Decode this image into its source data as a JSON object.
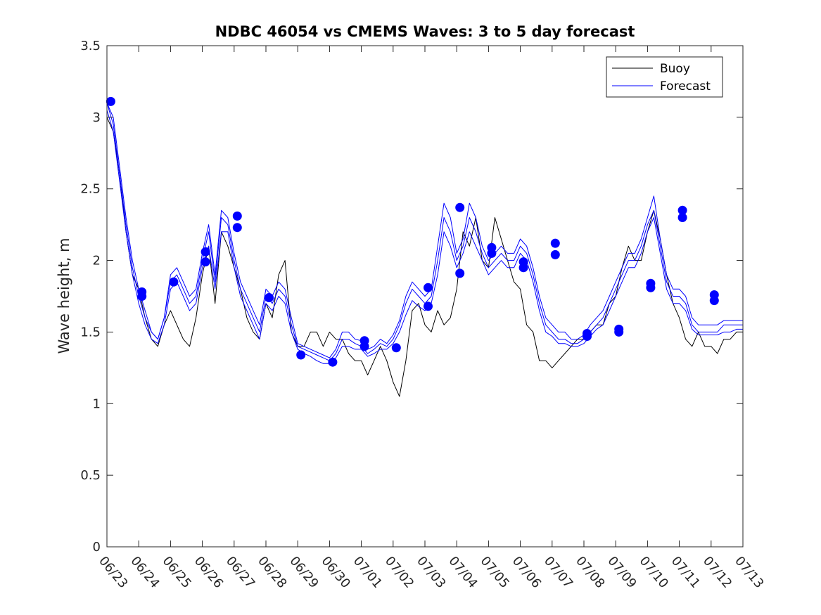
{
  "chart_data": {
    "type": "line",
    "title": "NDBC 46054 vs CMEMS Waves: 3 to 5 day forecast",
    "xlabel": "",
    "ylabel": "Wave height, m",
    "x_tick_labels": [
      "06/23",
      "06/24",
      "06/25",
      "06/26",
      "06/27",
      "06/28",
      "06/29",
      "06/30",
      "07/01",
      "07/02",
      "07/03",
      "07/04",
      "07/05",
      "07/06",
      "07/07",
      "07/08",
      "07/09",
      "07/10",
      "07/11",
      "07/12",
      "07/13"
    ],
    "xlim_days": [
      0,
      20
    ],
    "ylim": [
      0,
      3.5
    ],
    "y_ticks": [
      0,
      0.5,
      1,
      1.5,
      2,
      2.5,
      3,
      3.5
    ],
    "y_tick_labels": [
      "0",
      "0.5",
      "1",
      "1.5",
      "2",
      "2.5",
      "3",
      "3.5"
    ],
    "grid": false,
    "legend_position": "top-right",
    "legend": [
      {
        "label": "Buoy",
        "color": "#000000"
      },
      {
        "label": "Forecast",
        "color": "#0000ff"
      }
    ],
    "series": [
      {
        "name": "Buoy",
        "color": "#000000",
        "x": [
          0,
          0.2,
          0.4,
          0.6,
          0.8,
          1.0,
          1.2,
          1.4,
          1.6,
          1.8,
          2.0,
          2.2,
          2.4,
          2.6,
          2.8,
          3.0,
          3.2,
          3.4,
          3.6,
          3.8,
          4.0,
          4.2,
          4.4,
          4.6,
          4.8,
          5.0,
          5.2,
          5.4,
          5.6,
          5.8,
          6.0,
          6.2,
          6.4,
          6.6,
          6.8,
          7.0,
          7.2,
          7.4,
          7.6,
          7.8,
          8.0,
          8.2,
          8.4,
          8.6,
          8.8,
          9.0,
          9.2,
          9.4,
          9.6,
          9.8,
          10.0,
          10.2,
          10.4,
          10.6,
          10.8,
          11.0,
          11.2,
          11.4,
          11.6,
          11.8,
          12.0,
          12.2,
          12.4,
          12.6,
          12.8,
          13.0,
          13.2,
          13.4,
          13.6,
          13.8,
          14.0,
          14.2,
          14.4,
          14.6,
          14.8,
          15.0,
          15.2,
          15.4,
          15.6,
          15.8,
          16.0,
          16.2,
          16.4,
          16.6,
          16.8,
          17.0,
          17.2,
          17.4,
          17.6,
          17.8,
          18.0,
          18.2,
          18.4,
          18.6,
          18.8,
          19.0,
          19.2,
          19.4,
          19.6,
          19.8,
          20.0
        ],
        "values": [
          3.0,
          2.9,
          2.6,
          2.2,
          1.9,
          1.8,
          1.6,
          1.45,
          1.4,
          1.55,
          1.65,
          1.55,
          1.45,
          1.4,
          1.6,
          1.9,
          2.1,
          1.7,
          2.2,
          2.1,
          1.95,
          1.8,
          1.6,
          1.5,
          1.45,
          1.7,
          1.6,
          1.9,
          2.0,
          1.5,
          1.4,
          1.4,
          1.5,
          1.5,
          1.4,
          1.5,
          1.45,
          1.45,
          1.35,
          1.3,
          1.3,
          1.2,
          1.3,
          1.4,
          1.3,
          1.15,
          1.05,
          1.3,
          1.65,
          1.7,
          1.55,
          1.5,
          1.65,
          1.55,
          1.6,
          1.8,
          2.2,
          2.1,
          2.3,
          2.0,
          1.95,
          2.3,
          2.15,
          2.0,
          1.85,
          1.8,
          1.55,
          1.5,
          1.3,
          1.3,
          1.25,
          1.3,
          1.35,
          1.4,
          1.45,
          1.45,
          1.5,
          1.55,
          1.55,
          1.7,
          1.75,
          1.95,
          2.1,
          2.0,
          2.0,
          2.2,
          2.35,
          2.15,
          1.9,
          1.7,
          1.6,
          1.45,
          1.4,
          1.5,
          1.4,
          1.4,
          1.35,
          1.45,
          1.45,
          1.5,
          1.5
        ]
      },
      {
        "name": "Forecast",
        "color": "#0000ff",
        "x": [
          0,
          0.2,
          0.4,
          0.6,
          0.8,
          1.0,
          1.2,
          1.4,
          1.6,
          1.8,
          2.0,
          2.2,
          2.4,
          2.6,
          2.8,
          3.0,
          3.2,
          3.4,
          3.6,
          3.8,
          4.0,
          4.2,
          4.4,
          4.6,
          4.8,
          5.0,
          5.2,
          5.4,
          5.6,
          5.8,
          6.0,
          6.2,
          6.4,
          6.6,
          6.8,
          7.0,
          7.2,
          7.4,
          7.6,
          7.8,
          8.0,
          8.2,
          8.4,
          8.6,
          8.8,
          9.0,
          9.2,
          9.4,
          9.6,
          9.8,
          10.0,
          10.2,
          10.4,
          10.6,
          10.8,
          11.0,
          11.2,
          11.4,
          11.6,
          11.8,
          12.0,
          12.2,
          12.4,
          12.6,
          12.8,
          13.0,
          13.2,
          13.4,
          13.6,
          13.8,
          14.0,
          14.2,
          14.4,
          14.6,
          14.8,
          15.0,
          15.2,
          15.4,
          15.6,
          15.8,
          16.0,
          16.2,
          16.4,
          16.6,
          16.8,
          17.0,
          17.2,
          17.4,
          17.6,
          17.8,
          18.0,
          18.2,
          18.4,
          18.6,
          18.8,
          19.0,
          19.2,
          19.4,
          19.6,
          19.8,
          20.0
        ],
        "values": [
          3.1,
          2.95,
          2.6,
          2.25,
          1.95,
          1.75,
          1.6,
          1.5,
          1.45,
          1.6,
          1.85,
          1.9,
          1.8,
          1.7,
          1.75,
          2.0,
          2.2,
          1.85,
          2.3,
          2.25,
          2.0,
          1.8,
          1.7,
          1.6,
          1.5,
          1.75,
          1.7,
          1.8,
          1.75,
          1.55,
          1.4,
          1.38,
          1.36,
          1.34,
          1.32,
          1.3,
          1.35,
          1.45,
          1.45,
          1.42,
          1.4,
          1.35,
          1.38,
          1.42,
          1.4,
          1.45,
          1.55,
          1.7,
          1.8,
          1.75,
          1.7,
          1.75,
          2.0,
          2.3,
          2.2,
          2.0,
          2.1,
          2.3,
          2.2,
          2.05,
          1.95,
          2.0,
          2.05,
          2.0,
          2.0,
          2.1,
          2.05,
          1.9,
          1.7,
          1.55,
          1.5,
          1.45,
          1.45,
          1.42,
          1.42,
          1.45,
          1.5,
          1.55,
          1.6,
          1.7,
          1.8,
          1.9,
          2.0,
          2.0,
          2.1,
          2.25,
          2.35,
          2.1,
          1.85,
          1.75,
          1.75,
          1.7,
          1.55,
          1.5,
          1.5,
          1.5,
          1.5,
          1.55,
          1.55,
          1.55,
          1.55
        ]
      },
      {
        "name": "",
        "color": "#0000ff",
        "x": [
          0,
          0.2,
          0.4,
          0.6,
          0.8,
          1.0,
          1.2,
          1.4,
          1.6,
          1.8,
          2.0,
          2.2,
          2.4,
          2.6,
          2.8,
          3.0,
          3.2,
          3.4,
          3.6,
          3.8,
          4.0,
          4.2,
          4.4,
          4.6,
          4.8,
          5.0,
          5.2,
          5.4,
          5.6,
          5.8,
          6.0,
          6.2,
          6.4,
          6.6,
          6.8,
          7.0,
          7.2,
          7.4,
          7.6,
          7.8,
          8.0,
          8.2,
          8.4,
          8.6,
          8.8,
          9.0,
          9.2,
          9.4,
          9.6,
          9.8,
          10.0,
          10.2,
          10.4,
          10.6,
          10.8,
          11.0,
          11.2,
          11.4,
          11.6,
          11.8,
          12.0,
          12.2,
          12.4,
          12.6,
          12.8,
          13.0,
          13.2,
          13.4,
          13.6,
          13.8,
          14.0,
          14.2,
          14.4,
          14.6,
          14.8,
          15.0,
          15.2,
          15.4,
          15.6,
          15.8,
          16.0,
          16.2,
          16.4,
          16.6,
          16.8,
          17.0,
          17.2,
          17.4,
          17.6,
          17.8,
          18.0,
          18.2,
          18.4,
          18.6,
          18.8,
          19.0,
          19.2,
          19.4,
          19.6,
          19.8,
          20.0
        ],
        "values": [
          3.05,
          2.9,
          2.55,
          2.2,
          1.9,
          1.7,
          1.55,
          1.45,
          1.42,
          1.55,
          1.8,
          1.85,
          1.75,
          1.65,
          1.7,
          1.95,
          2.1,
          1.8,
          2.2,
          2.2,
          1.95,
          1.75,
          1.65,
          1.55,
          1.45,
          1.7,
          1.65,
          1.75,
          1.7,
          1.5,
          1.38,
          1.35,
          1.33,
          1.3,
          1.28,
          1.28,
          1.32,
          1.4,
          1.4,
          1.38,
          1.38,
          1.33,
          1.35,
          1.38,
          1.38,
          1.42,
          1.5,
          1.62,
          1.72,
          1.68,
          1.65,
          1.7,
          1.9,
          2.2,
          2.1,
          1.95,
          2.05,
          2.2,
          2.1,
          2.0,
          1.9,
          1.95,
          2.0,
          1.95,
          1.95,
          2.05,
          2.0,
          1.85,
          1.65,
          1.5,
          1.47,
          1.42,
          1.42,
          1.4,
          1.4,
          1.42,
          1.47,
          1.52,
          1.55,
          1.65,
          1.75,
          1.85,
          1.95,
          1.95,
          2.05,
          2.2,
          2.3,
          2.05,
          1.8,
          1.7,
          1.7,
          1.65,
          1.52,
          1.48,
          1.48,
          1.48,
          1.48,
          1.5,
          1.5,
          1.52,
          1.52
        ]
      },
      {
        "name": "",
        "color": "#0000ff",
        "x": [
          0,
          0.2,
          0.4,
          0.6,
          0.8,
          1.0,
          1.2,
          1.4,
          1.6,
          1.8,
          2.0,
          2.2,
          2.4,
          2.6,
          2.8,
          3.0,
          3.2,
          3.4,
          3.6,
          3.8,
          4.0,
          4.2,
          4.4,
          4.6,
          4.8,
          5.0,
          5.2,
          5.4,
          5.6,
          5.8,
          6.0,
          6.2,
          6.4,
          6.6,
          6.8,
          7.0,
          7.2,
          7.4,
          7.6,
          7.8,
          8.0,
          8.2,
          8.4,
          8.6,
          8.8,
          9.0,
          9.2,
          9.4,
          9.6,
          9.8,
          10.0,
          10.2,
          10.4,
          10.6,
          10.8,
          11.0,
          11.2,
          11.4,
          11.6,
          11.8,
          12.0,
          12.2,
          12.4,
          12.6,
          12.8,
          13.0,
          13.2,
          13.4,
          13.6,
          13.8,
          14.0,
          14.2,
          14.4,
          14.6,
          14.8,
          15.0,
          15.2,
          15.4,
          15.6,
          15.8,
          16.0,
          16.2,
          16.4,
          16.6,
          16.8,
          17.0,
          17.2,
          17.4,
          17.6,
          17.8,
          18.0,
          18.2,
          18.4,
          18.6,
          18.8,
          19.0,
          19.2,
          19.4,
          19.6,
          19.8,
          20.0
        ],
        "values": [
          3.1,
          3.0,
          2.65,
          2.3,
          2.0,
          1.8,
          1.65,
          1.5,
          1.45,
          1.6,
          1.9,
          1.95,
          1.85,
          1.75,
          1.8,
          2.05,
          2.25,
          1.9,
          2.35,
          2.3,
          2.05,
          1.85,
          1.75,
          1.65,
          1.55,
          1.8,
          1.75,
          1.85,
          1.8,
          1.6,
          1.42,
          1.4,
          1.38,
          1.36,
          1.34,
          1.32,
          1.38,
          1.5,
          1.5,
          1.45,
          1.44,
          1.38,
          1.4,
          1.45,
          1.42,
          1.48,
          1.58,
          1.75,
          1.85,
          1.8,
          1.75,
          1.8,
          2.1,
          2.4,
          2.3,
          2.05,
          2.15,
          2.4,
          2.3,
          2.1,
          2.0,
          2.05,
          2.1,
          2.05,
          2.05,
          2.15,
          2.1,
          1.95,
          1.75,
          1.6,
          1.55,
          1.5,
          1.5,
          1.45,
          1.45,
          1.48,
          1.55,
          1.6,
          1.65,
          1.75,
          1.85,
          1.95,
          2.05,
          2.05,
          2.15,
          2.3,
          2.45,
          2.15,
          1.9,
          1.8,
          1.8,
          1.75,
          1.6,
          1.55,
          1.55,
          1.55,
          1.55,
          1.58,
          1.58,
          1.58,
          1.58
        ]
      }
    ],
    "markers": {
      "name": "Forecast",
      "color": "#0000ff",
      "x": [
        0.12,
        1.1,
        1.1,
        2.1,
        3.1,
        3.1,
        4.1,
        4.1,
        5.1,
        6.1,
        7.1,
        8.1,
        8.1,
        9.1,
        10.1,
        10.1,
        11.1,
        11.1,
        12.1,
        12.1,
        13.1,
        13.1,
        14.1,
        14.1,
        15.1,
        15.1,
        16.1,
        16.1,
        17.1,
        17.1,
        18.1,
        18.1,
        19.1,
        19.1
      ],
      "values": [
        3.11,
        1.78,
        1.75,
        1.85,
        2.06,
        1.99,
        2.31,
        2.23,
        1.74,
        1.34,
        1.29,
        1.44,
        1.4,
        1.39,
        1.81,
        1.68,
        2.37,
        1.91,
        2.09,
        2.05,
        1.99,
        1.95,
        2.12,
        2.04,
        1.49,
        1.47,
        1.52,
        1.5,
        1.84,
        1.81,
        2.35,
        2.3,
        1.76,
        1.72
      ]
    }
  }
}
